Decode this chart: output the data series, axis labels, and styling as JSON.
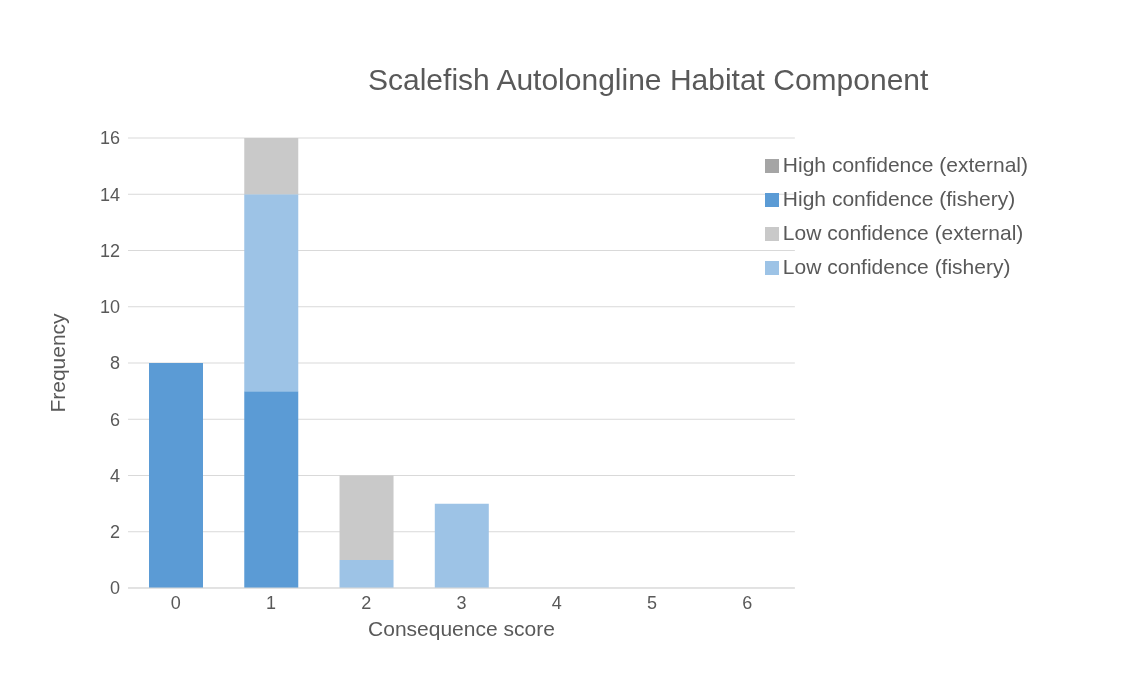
{
  "chart_data": {
    "type": "bar",
    "title": "Scalefish Autolongline Habitat Component",
    "xlabel": "Consequence score",
    "ylabel": "Frequency",
    "categories": [
      "0",
      "1",
      "2",
      "3",
      "4",
      "5",
      "6"
    ],
    "stacked": true,
    "series": [
      {
        "name": "High confidence (fishery)",
        "color": "#5b9bd5",
        "values": [
          8,
          7,
          0,
          0,
          0,
          0,
          0
        ]
      },
      {
        "name": "Low confidence (fishery)",
        "color": "#9dc3e6",
        "values": [
          0,
          7,
          1,
          3,
          0,
          0,
          0
        ]
      },
      {
        "name": "High confidence (external)",
        "color": "#a5a5a5",
        "values": [
          0,
          0,
          0,
          0,
          0,
          0,
          0
        ]
      },
      {
        "name": "Low confidence (external)",
        "color": "#c9c9c9",
        "values": [
          0,
          2,
          3,
          0,
          0,
          0,
          0
        ]
      }
    ],
    "ylim": [
      0,
      16
    ],
    "yticks": [
      0,
      2,
      4,
      6,
      8,
      10,
      12,
      14,
      16
    ],
    "grid": "y",
    "legend": "top right"
  }
}
